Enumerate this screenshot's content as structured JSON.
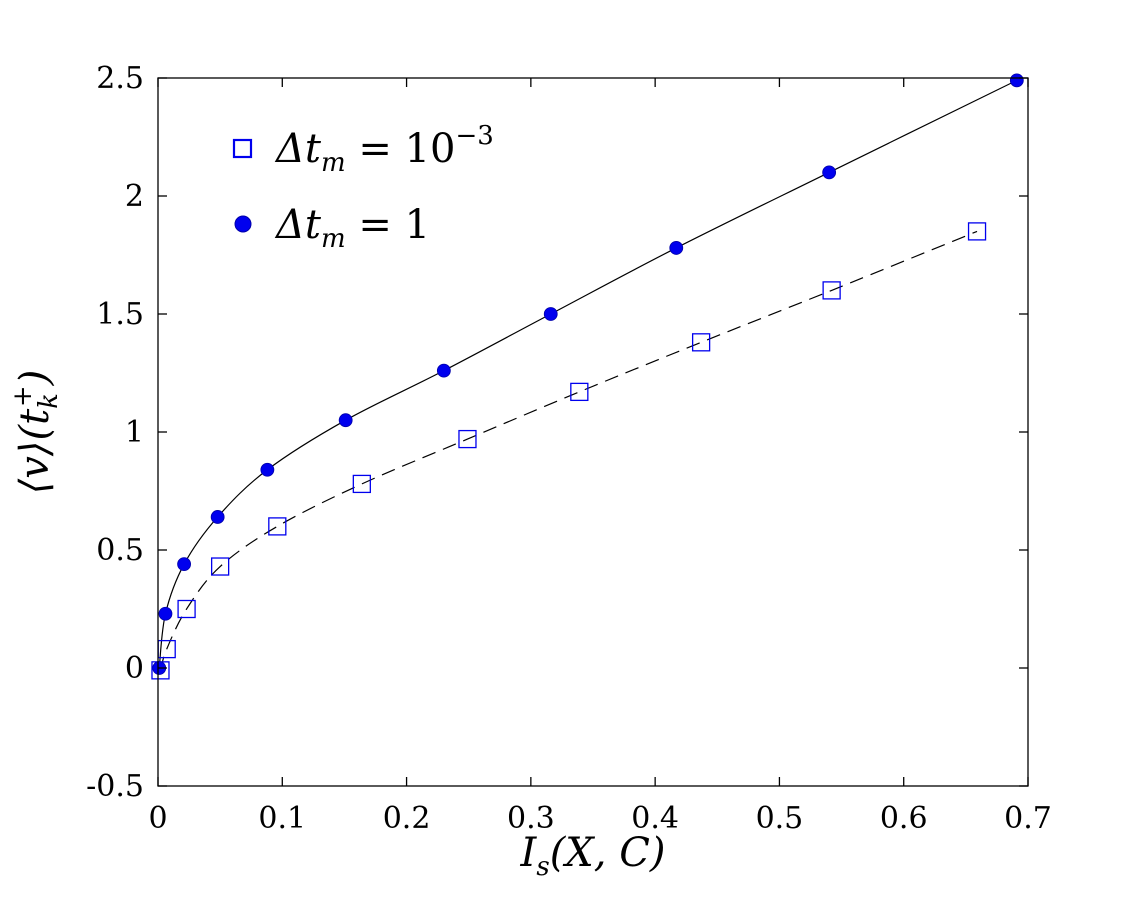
{
  "chart_data": {
    "type": "scatter",
    "xlabel": "I_s(X, C)",
    "xlabel_main": "I",
    "xlabel_sub": "s",
    "xlabel_rest": "(X, C)",
    "ylabel": "⟨v⟩(t_k^+)",
    "ylabel_main": "⟨v⟩(t",
    "ylabel_sub": "k",
    "ylabel_sup": "+",
    "ylabel_close": ")",
    "xlim": [
      0,
      0.7
    ],
    "ylim": [
      -0.5,
      2.5
    ],
    "xticks": [
      0,
      0.1,
      0.2,
      0.3,
      0.4,
      0.5,
      0.6,
      0.7
    ],
    "xtick_labels": [
      "0",
      "0.1",
      "0.2",
      "0.3",
      "0.4",
      "0.5",
      "0.6",
      "0.7"
    ],
    "yticks": [
      -0.5,
      0,
      0.5,
      1,
      1.5,
      2,
      2.5
    ],
    "ytick_labels": [
      "-0.5",
      "0",
      "0.5",
      "1",
      "1.5",
      "2",
      "2.5"
    ],
    "grid": false,
    "legend_position": "top-left",
    "series": [
      {
        "name": "Δt_m = 10^-3",
        "legend_main": "Δt",
        "legend_sub": "m",
        "legend_eq": " = 10",
        "legend_sup": "−3",
        "marker": "square-open",
        "color": "#0000ee",
        "fit_line": "dashed",
        "x": [
          0.002,
          0.007,
          0.023,
          0.05,
          0.096,
          0.164,
          0.249,
          0.339,
          0.437,
          0.542,
          0.659
        ],
        "y": [
          -0.01,
          0.08,
          0.25,
          0.43,
          0.6,
          0.78,
          0.97,
          1.17,
          1.38,
          1.6,
          1.85
        ]
      },
      {
        "name": "Δt_m = 1",
        "legend_main": "Δt",
        "legend_sub": "m",
        "legend_eq": " = 1",
        "marker": "circle-filled",
        "color": "#0000ee",
        "fit_line": "solid",
        "x": [
          0.001,
          0.006,
          0.021,
          0.048,
          0.088,
          0.151,
          0.23,
          0.316,
          0.417,
          0.54,
          0.691
        ],
        "y": [
          0.0,
          0.23,
          0.44,
          0.64,
          0.84,
          1.05,
          1.26,
          1.5,
          1.78,
          2.1,
          2.49
        ]
      }
    ]
  }
}
